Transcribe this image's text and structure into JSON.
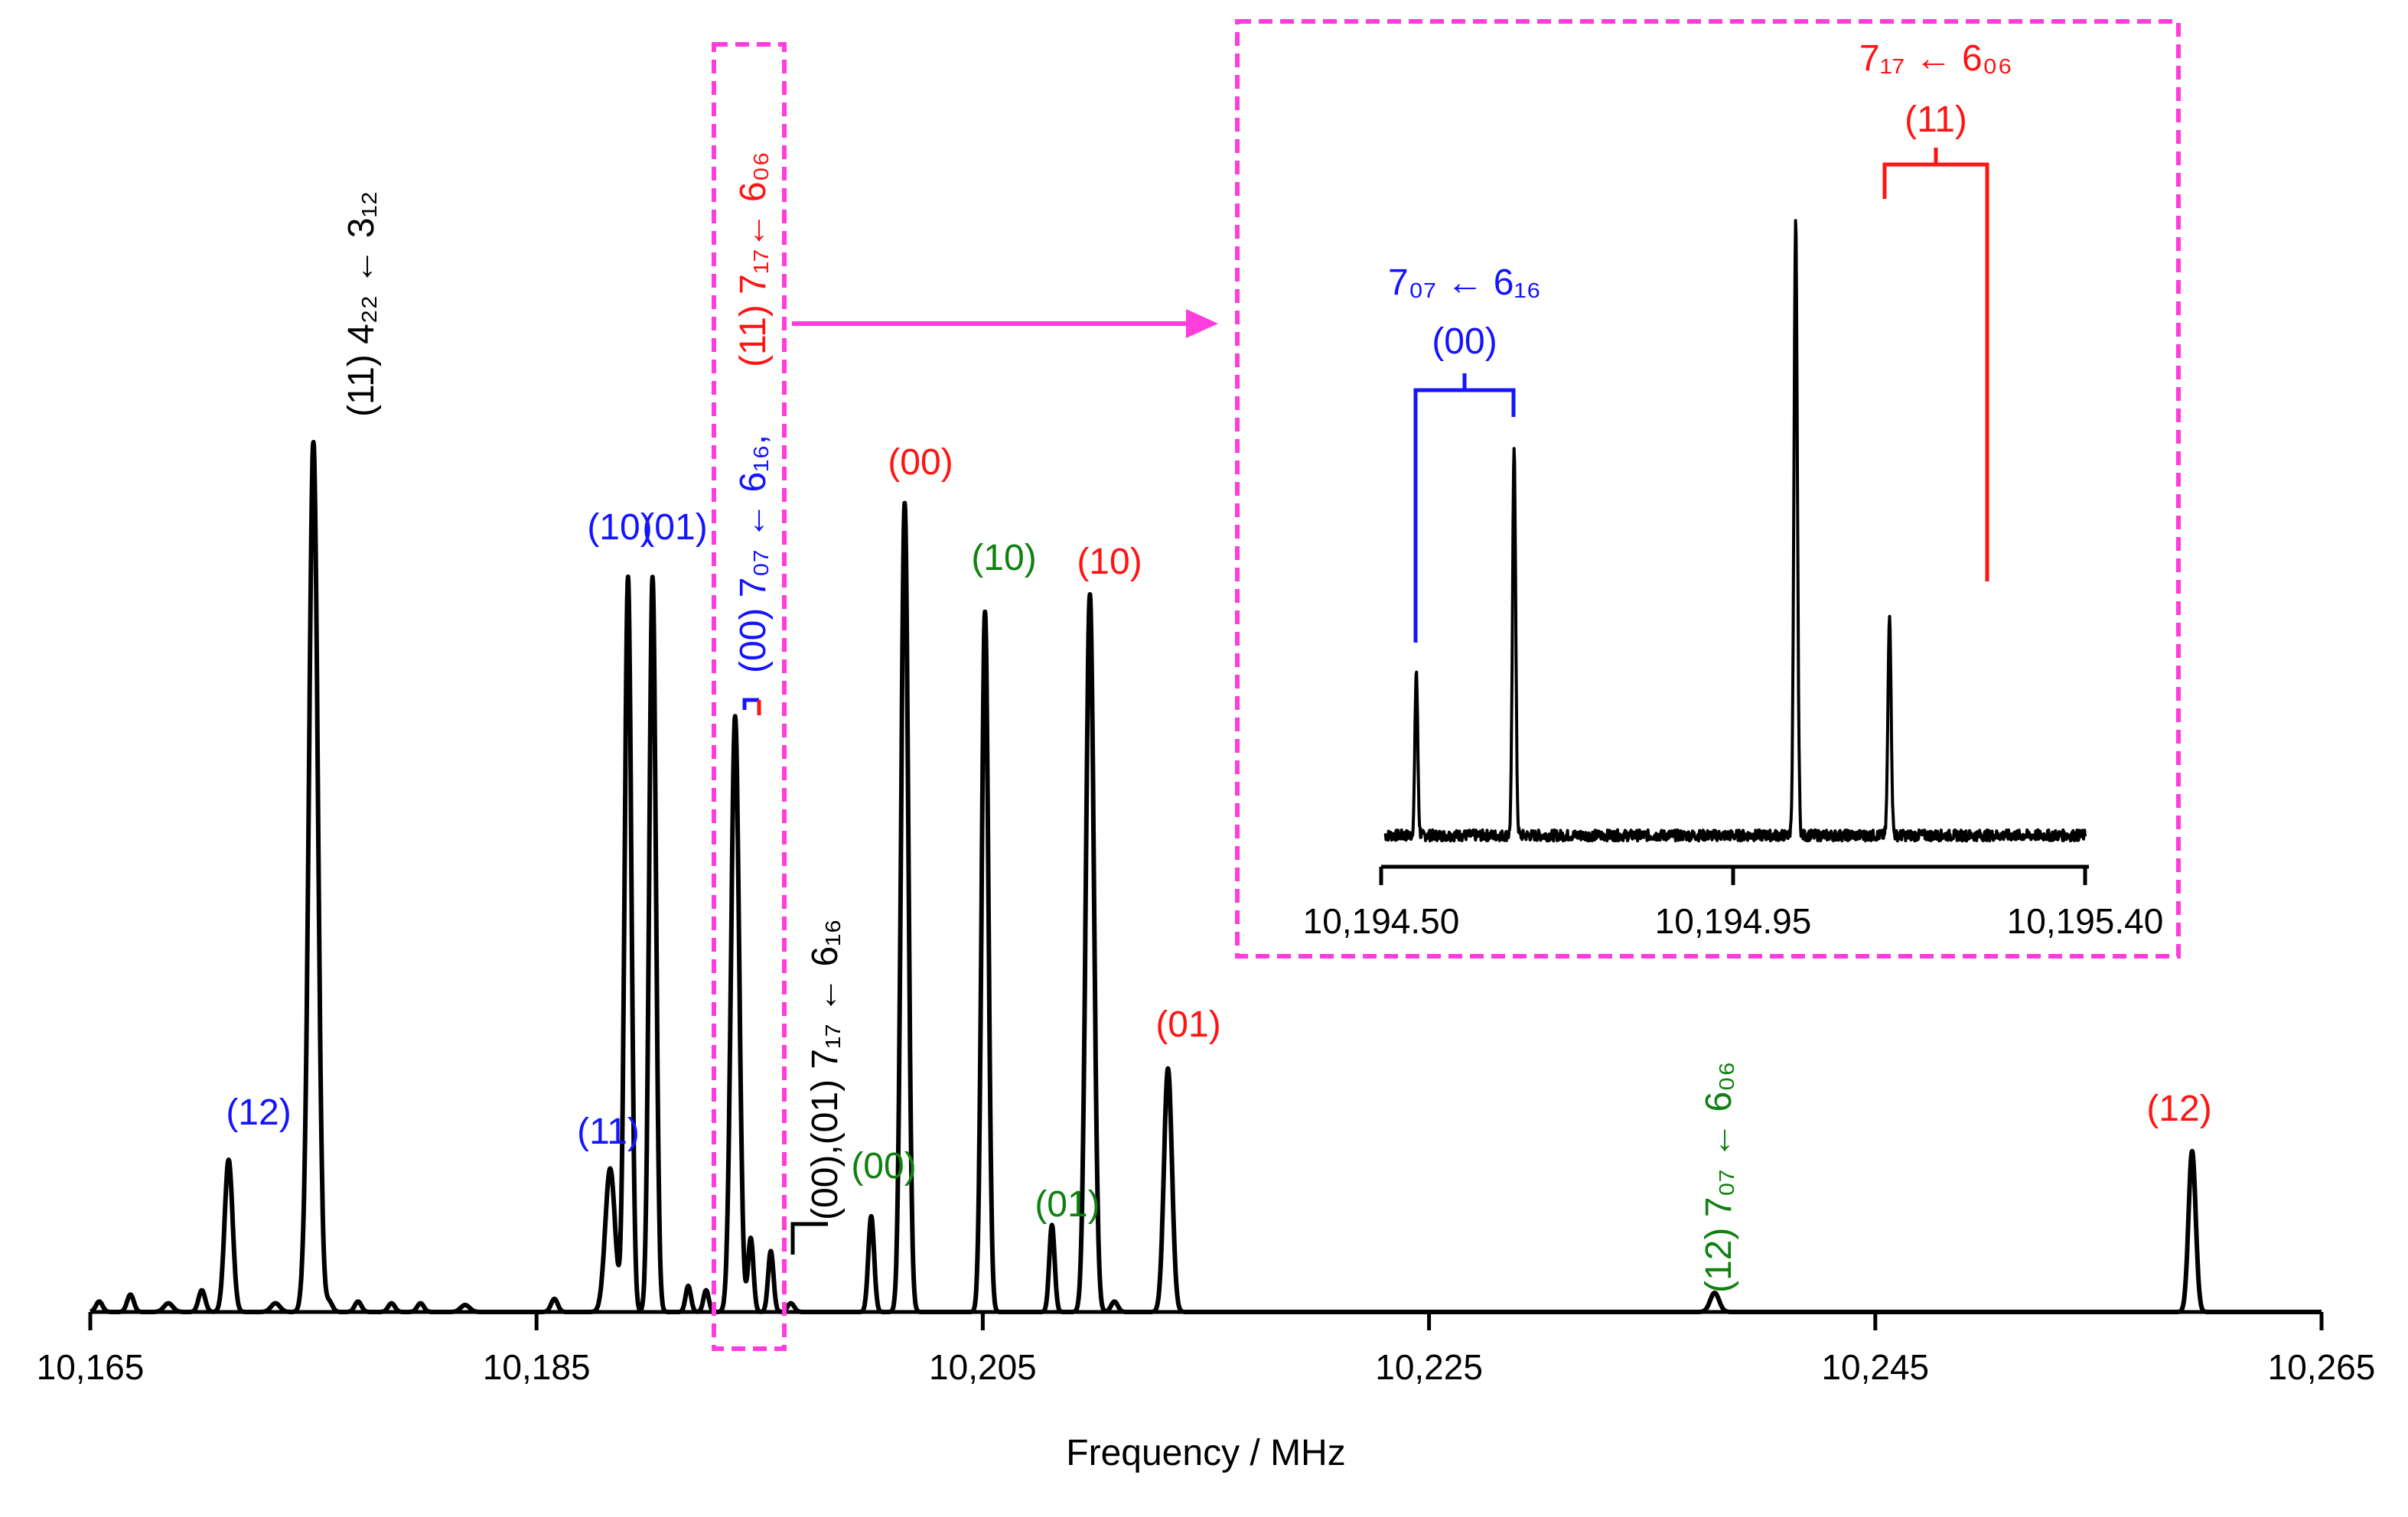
{
  "chart_data": {
    "type": "line",
    "title": "",
    "xlabel": "Frequency / MHz",
    "ylabel": "",
    "xlim": [
      10165,
      10265
    ],
    "ylim": [
      0,
      1.0
    ],
    "x_tick_labels": [
      "10,165",
      "10,185",
      "10,205",
      "10,225",
      "10,245",
      "10,265"
    ],
    "x_ticks": [
      10165,
      10185,
      10205,
      10225,
      10245,
      10265
    ],
    "colors": {
      "black": "#000000",
      "blue": "#1414ff",
      "red": "#ff1414",
      "green": "#108010",
      "magenta": "#ff3cdc"
    },
    "series": [
      {
        "name": "spectrum",
        "peaks": [
          {
            "x": 10165.4,
            "y": 0.012,
            "w": 0.15
          },
          {
            "x": 10166.8,
            "y": 0.02,
            "w": 0.15
          },
          {
            "x": 10168.5,
            "y": 0.01,
            "w": 0.2
          },
          {
            "x": 10170.0,
            "y": 0.025,
            "w": 0.15
          },
          {
            "x": 10171.2,
            "y": 0.175,
            "w": 0.18
          },
          {
            "x": 10173.3,
            "y": 0.01,
            "w": 0.2
          },
          {
            "x": 10174.6,
            "y": 0.025,
            "w": 0.15
          },
          {
            "x": 10175.0,
            "y": 1.0,
            "w": 0.2
          },
          {
            "x": 10175.7,
            "y": 0.012,
            "w": 0.15
          },
          {
            "x": 10177.0,
            "y": 0.012,
            "w": 0.15
          },
          {
            "x": 10178.5,
            "y": 0.01,
            "w": 0.15
          },
          {
            "x": 10179.8,
            "y": 0.01,
            "w": 0.15
          },
          {
            "x": 10181.8,
            "y": 0.008,
            "w": 0.2
          },
          {
            "x": 10185.8,
            "y": 0.015,
            "w": 0.15
          },
          {
            "x": 10188.3,
            "y": 0.165,
            "w": 0.22
          },
          {
            "x": 10189.1,
            "y": 0.845,
            "w": 0.15
          },
          {
            "x": 10190.2,
            "y": 0.845,
            "w": 0.15
          },
          {
            "x": 10191.8,
            "y": 0.03,
            "w": 0.12
          },
          {
            "x": 10192.6,
            "y": 0.025,
            "w": 0.12
          },
          {
            "x": 10193.9,
            "y": 0.685,
            "w": 0.18
          },
          {
            "x": 10194.6,
            "y": 0.085,
            "w": 0.12
          },
          {
            "x": 10195.5,
            "y": 0.07,
            "w": 0.12
          },
          {
            "x": 10196.4,
            "y": 0.01,
            "w": 0.15
          },
          {
            "x": 10200.0,
            "y": 0.11,
            "w": 0.13
          },
          {
            "x": 10201.5,
            "y": 0.93,
            "w": 0.16
          },
          {
            "x": 10205.1,
            "y": 0.805,
            "w": 0.15
          },
          {
            "x": 10208.1,
            "y": 0.1,
            "w": 0.12
          },
          {
            "x": 10209.8,
            "y": 0.825,
            "w": 0.18
          },
          {
            "x": 10210.9,
            "y": 0.012,
            "w": 0.15
          },
          {
            "x": 10213.3,
            "y": 0.28,
            "w": 0.18
          },
          {
            "x": 10237.8,
            "y": 0.022,
            "w": 0.2
          },
          {
            "x": 10259.2,
            "y": 0.185,
            "w": 0.16
          }
        ]
      }
    ],
    "annotations": [
      {
        "text": "(12)",
        "color": "blue",
        "x": 10171.2,
        "y": 0.175
      },
      {
        "text": "(11) 4₂₂ ← 3₁₂",
        "color": "black",
        "x": 10175.0,
        "y": 1.0,
        "rotated": true
      },
      {
        "text": "(11)",
        "color": "blue",
        "x": 10188.3,
        "y": 0.165
      },
      {
        "text": "(10)",
        "color": "blue",
        "x": 10189.1,
        "y": 0.845
      },
      {
        "text": "(01)",
        "color": "blue",
        "x": 10190.2,
        "y": 0.845
      },
      {
        "text": "(00) 7₀₇ ← 6₁₆,",
        "color": "blue",
        "rotated": true
      },
      {
        "text": "(11) 7₁₇← 6₀₆",
        "color": "red",
        "rotated": true
      },
      {
        "text": "(00),(01) 7₁₇ ← 6₁₆",
        "color": "black",
        "rotated": true
      },
      {
        "text": "(00)",
        "color": "green",
        "x": 10200.0,
        "y": 0.11
      },
      {
        "text": "(00)",
        "color": "red",
        "x": 10201.5,
        "y": 0.93
      },
      {
        "text": "(10)",
        "color": "green",
        "x": 10205.1,
        "y": 0.805
      },
      {
        "text": "(01)",
        "color": "green",
        "x": 10208.1,
        "y": 0.1
      },
      {
        "text": "(10)",
        "color": "red",
        "x": 10209.8,
        "y": 0.825
      },
      {
        "text": "(01)",
        "color": "red",
        "x": 10213.3,
        "y": 0.28
      },
      {
        "text": "(12) 7₀₇ ← 6₀₆",
        "color": "green",
        "x": 10237.8,
        "rotated": true
      },
      {
        "text": "(12)",
        "color": "red",
        "x": 10259.2,
        "y": 0.185
      }
    ],
    "inset": {
      "xlim": [
        10194.5,
        10195.4
      ],
      "x_ticks": [
        10194.5,
        10194.95,
        10195.4
      ],
      "x_tick_labels": [
        "10,194.50",
        "10,194.95",
        "10,195.40"
      ],
      "peaks": [
        {
          "x": 10194.545,
          "y": 0.27,
          "w": 0.0018
        },
        {
          "x": 10194.67,
          "y": 0.64,
          "w": 0.002
        },
        {
          "x": 10195.03,
          "y": 1.0,
          "w": 0.0022
        },
        {
          "x": 10195.15,
          "y": 0.365,
          "w": 0.002
        }
      ],
      "labels": {
        "blue_transition": "7₀₇ ← 6₁₆",
        "blue_state": "(00)",
        "red_transition": "7₁₇ ← 6₀₆",
        "red_state": "(11)"
      }
    }
  }
}
